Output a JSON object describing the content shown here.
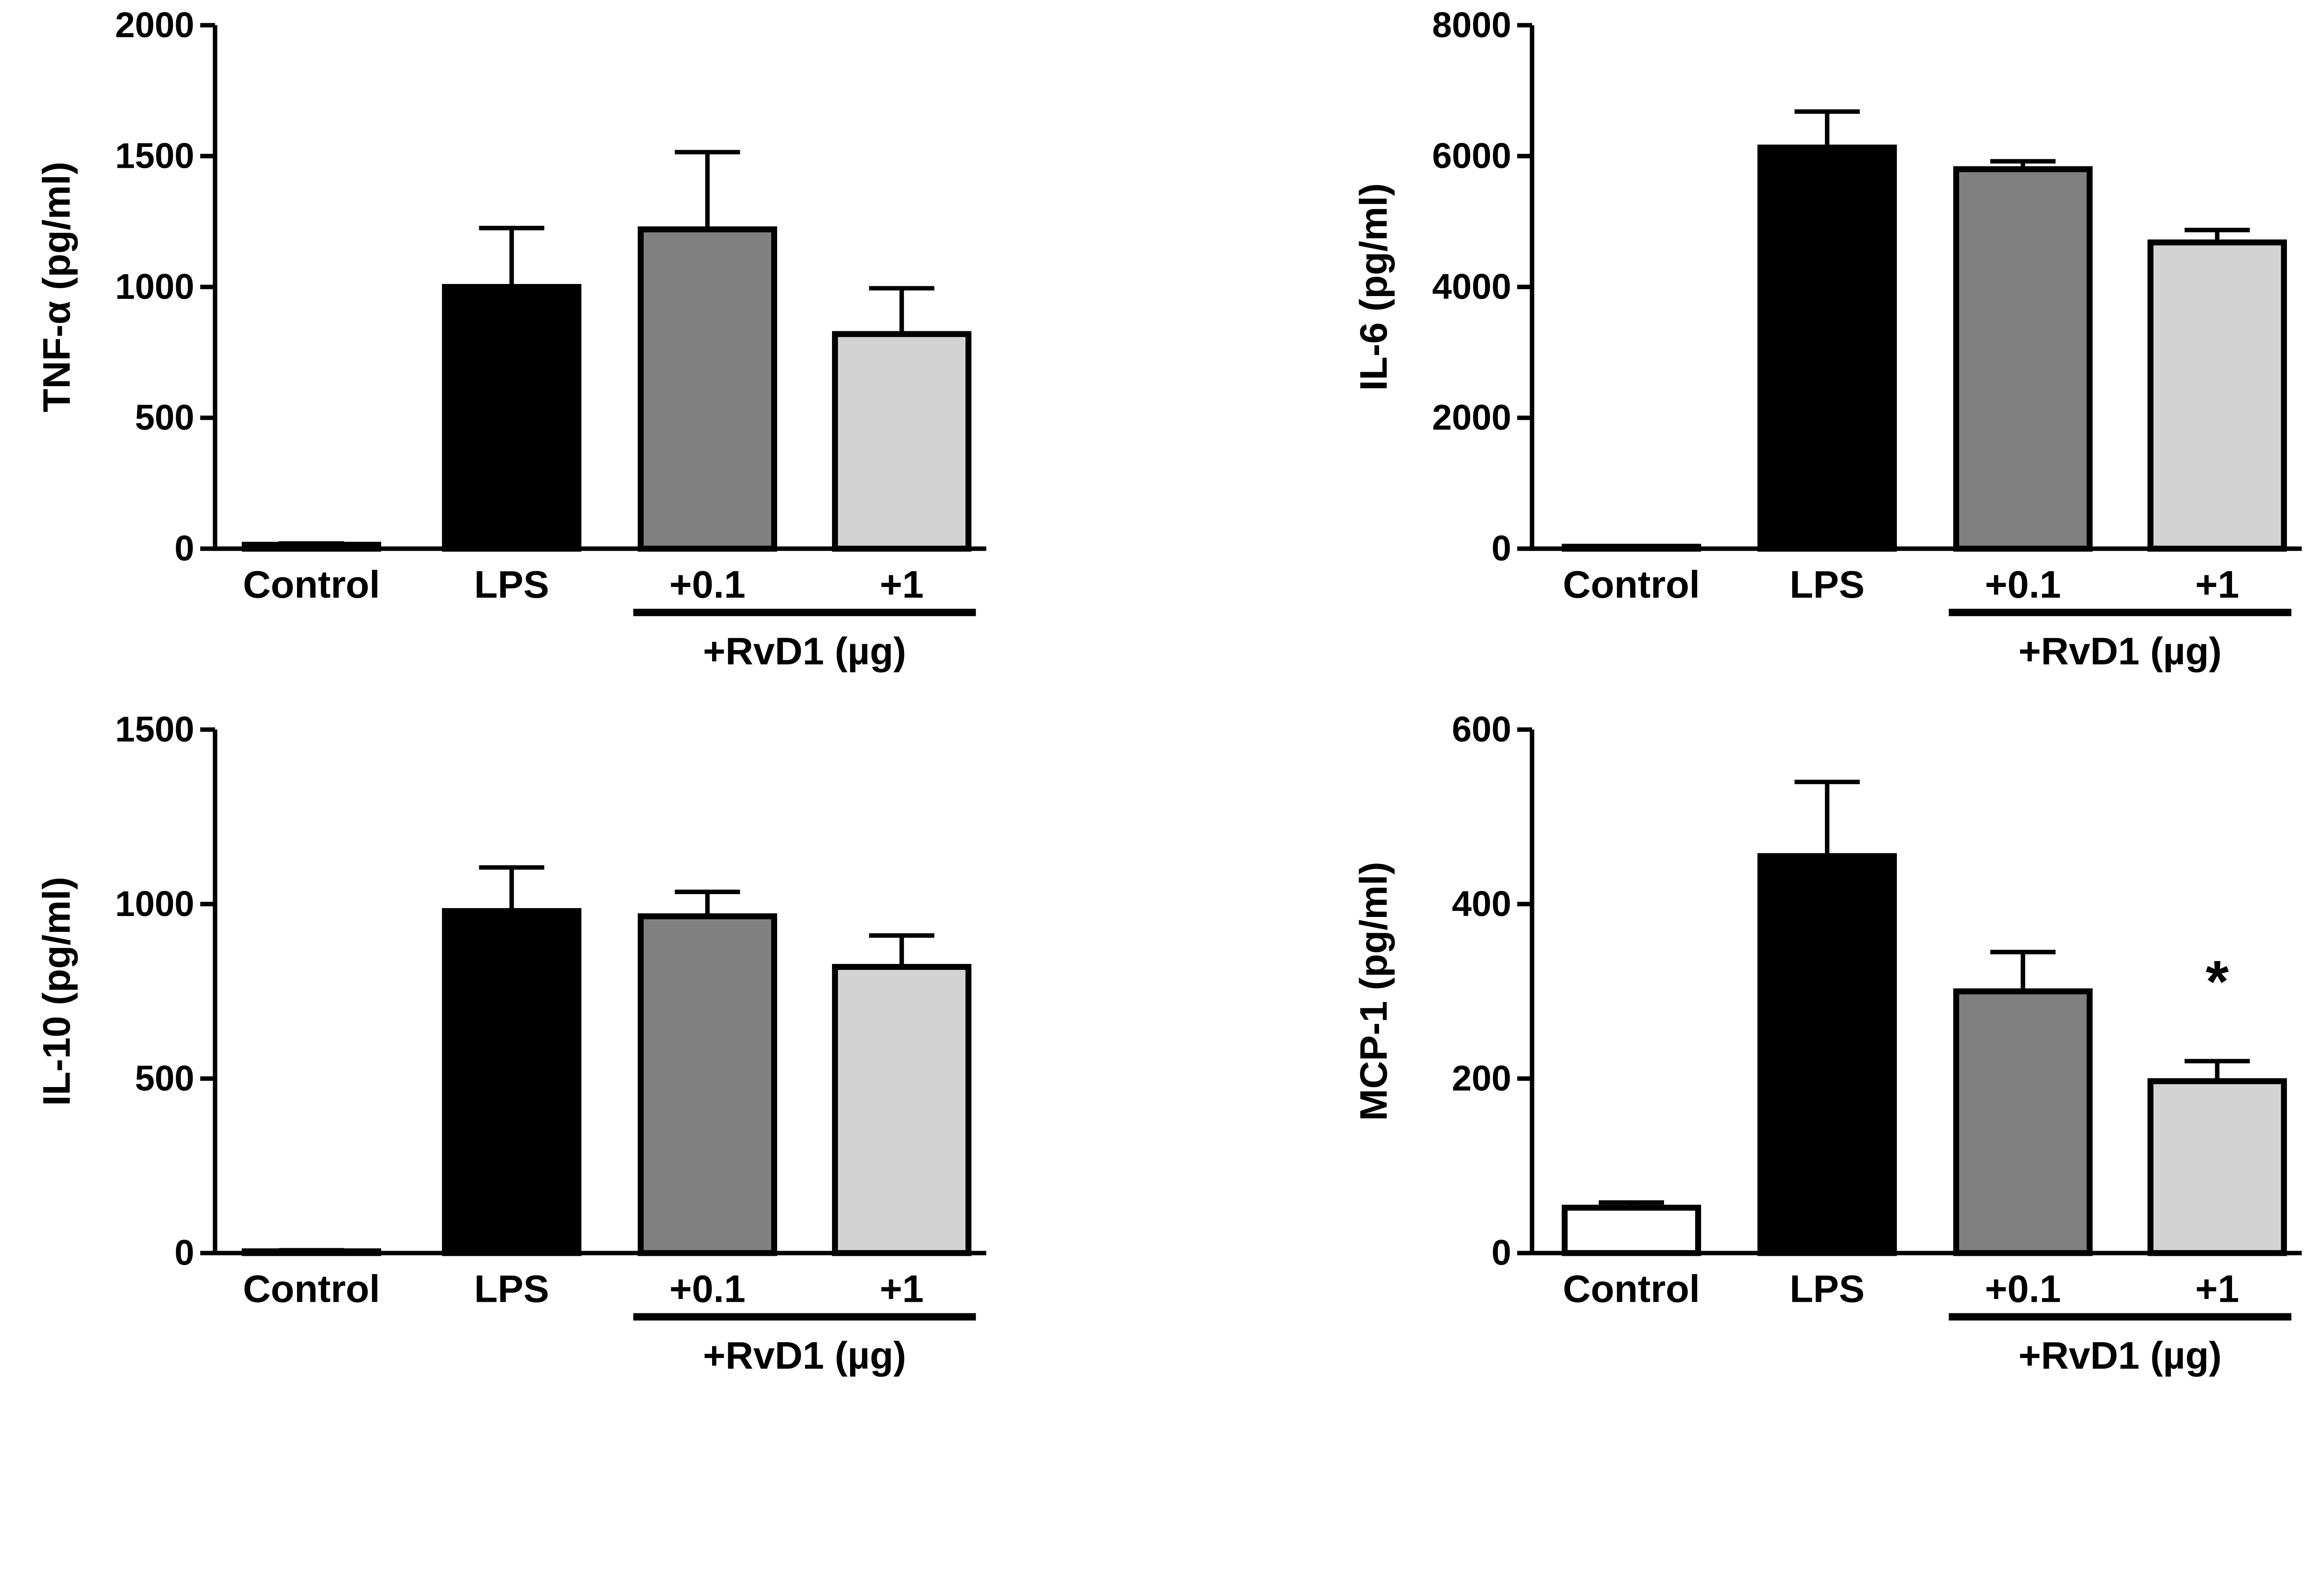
{
  "colors": {
    "Control": "#ffffff",
    "LPS": "#000000",
    "+0.1": "#808080",
    "+1": "#d3d3d3",
    "outline": "#000000"
  },
  "chart_data": [
    {
      "type": "bar",
      "ylabel": "TNF-α (pg/ml)",
      "categories": [
        "Control",
        "LPS",
        "+0.1",
        "+1"
      ],
      "values": [
        15,
        1000,
        1220,
        820
      ],
      "error_upper": [
        5,
        225,
        295,
        175
      ],
      "yticks": [
        0,
        500,
        1000,
        1500,
        2000
      ],
      "ylim": [
        0,
        2000
      ],
      "group_label": "+RvD1 (µg)",
      "annotations": []
    },
    {
      "type": "bar",
      "ylabel": "IL-6 (pg/ml)",
      "categories": [
        "Control",
        "LPS",
        "+0.1",
        "+1"
      ],
      "values": [
        30,
        6130,
        5800,
        4680
      ],
      "error_upper": [
        10,
        550,
        120,
        190
      ],
      "yticks": [
        0,
        2000,
        4000,
        6000,
        8000
      ],
      "ylim": [
        0,
        8000
      ],
      "group_label": "+RvD1 (µg)",
      "annotations": []
    },
    {
      "type": "bar",
      "ylabel": "IL-10 (pg/ml)",
      "categories": [
        "Control",
        "LPS",
        "+0.1",
        "+1"
      ],
      "values": [
        5,
        980,
        965,
        820
      ],
      "error_upper": [
        3,
        125,
        70,
        90
      ],
      "yticks": [
        0,
        500,
        1000,
        1500
      ],
      "ylim": [
        0,
        1500
      ],
      "group_label": "+RvD1 (µg)",
      "annotations": []
    },
    {
      "type": "bar",
      "ylabel": "MCP-1 (pg/ml)",
      "categories": [
        "Control",
        "LPS",
        "+0.1",
        "+1"
      ],
      "values": [
        52,
        455,
        300,
        197
      ],
      "error_upper": [
        6,
        85,
        45,
        23
      ],
      "yticks": [
        0,
        200,
        400,
        600
      ],
      "ylim": [
        0,
        600
      ],
      "group_label": "+RvD1 (µg)",
      "annotations": [
        {
          "category": "+1",
          "text": "*"
        }
      ]
    }
  ]
}
